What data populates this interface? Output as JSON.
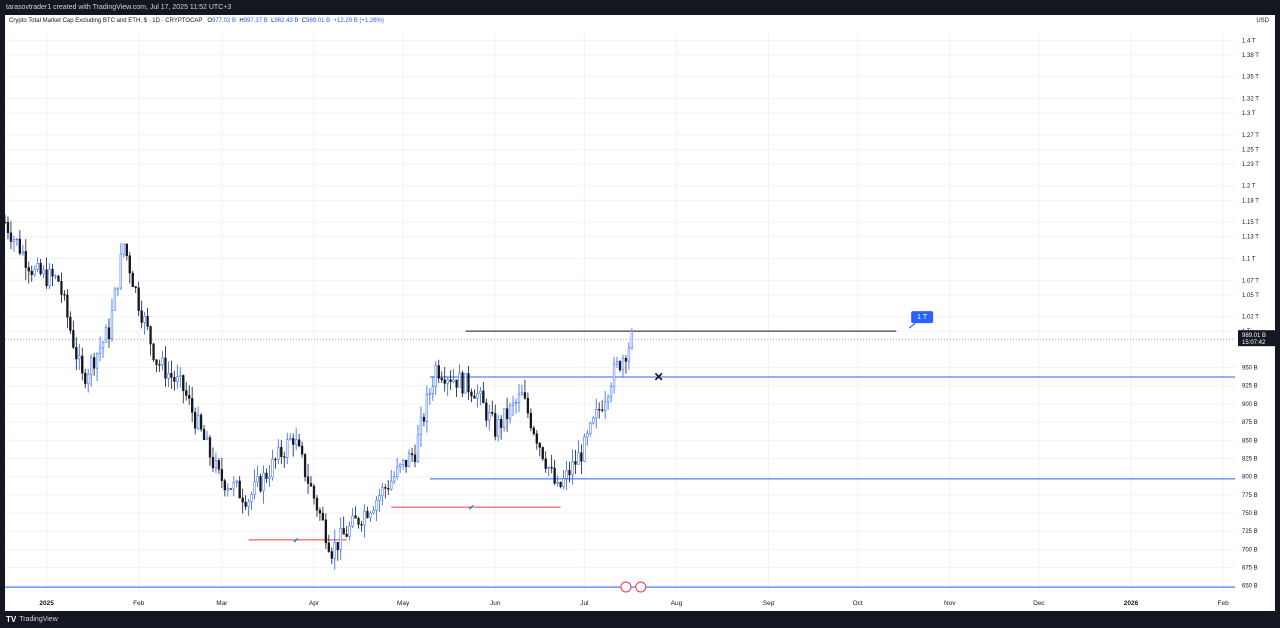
{
  "header": {
    "attribution": "tarasovtrader1 created with TradingView.com, Jul 17, 2025 11:52 UTC+3"
  },
  "footer": {
    "brand": "TradingView"
  },
  "legend": {
    "symbol": "Crypto Total Market Cap Excluding BTC and ETH, $ · 1D · CRYPTOCAP",
    "open_label": "O",
    "open": "977.02 B",
    "high_label": "H",
    "high": "997.37 B",
    "low_label": "L",
    "low": "962.43 B",
    "close_label": "C",
    "close": "989.01 B",
    "change": "+12.29 B (+1.26%)"
  },
  "price_axis": {
    "currency": "USD",
    "ticks": [
      "650 B",
      "675 B",
      "700 B",
      "725 B",
      "750 B",
      "775 B",
      "800 B",
      "825 B",
      "850 B",
      "875 B",
      "900 B",
      "925 B",
      "950 B",
      "1 T",
      "1.02 T",
      "1.05 T",
      "1.07 T",
      "1.1 T",
      "1.13 T",
      "1.15 T",
      "1.18 T",
      "1.2 T",
      "1.23 T",
      "1.25 T",
      "1.27 T",
      "1.3 T",
      "1.32 T",
      "1.35 T",
      "1.38 T",
      "1.4 T"
    ],
    "last_price_label": "989.01 B",
    "countdown_label": "15:07:42"
  },
  "time_axis": {
    "ticks": [
      "2025",
      "Feb",
      "Mar",
      "Apr",
      "May",
      "Jun",
      "Jul",
      "Aug",
      "Sep",
      "Oct",
      "Nov",
      "Dec",
      "2026",
      "Feb"
    ]
  },
  "annotations": {
    "target_label": "1 T",
    "check_mark": "✔",
    "x_mark": "✕"
  },
  "colors": {
    "background": "#ffffff",
    "frame": "#131722",
    "up_candle": "#2962ff",
    "down_candle": "#131722",
    "horizontal_lines": "#2962ff",
    "red_lines": "#f23645",
    "callout_bg": "#2962ff"
  },
  "chart_data": {
    "type": "candlestick",
    "title": "Crypto Total Market Cap Excluding BTC and ETH, $ · 1D · CRYPTOCAP",
    "interval": "1D",
    "y_unit": "USD (billions)",
    "ylim": [
      640,
      1410
    ],
    "x_range": [
      "2024-12-18",
      "2026-02-05"
    ],
    "grid": true,
    "last_close": 989.01,
    "horizontal_levels": [
      {
        "name": "resistance",
        "value": 937,
        "from": "2025-05-10",
        "to": "2026-02-05"
      },
      {
        "name": "support",
        "value": 797,
        "from": "2025-05-10",
        "to": "2026-02-05"
      },
      {
        "name": "base",
        "value": 648,
        "from": "2024-12-18",
        "to": "2026-02-05"
      },
      {
        "name": "target",
        "value": 1000,
        "from": "2025-05-22",
        "to": "2025-10-14"
      }
    ],
    "red_lines": [
      {
        "value": 713,
        "from": "2025-03-10",
        "to": "2025-04-12"
      },
      {
        "value": 758,
        "from": "2025-04-27",
        "to": "2025-06-23"
      }
    ],
    "price_path": [
      {
        "date": "2024-12-18",
        "close": 1150
      },
      {
        "date": "2024-12-28",
        "close": 1080
      },
      {
        "date": "2025-01-05",
        "close": 1070
      },
      {
        "date": "2025-01-13",
        "close": 935
      },
      {
        "date": "2025-01-22",
        "close": 1000
      },
      {
        "date": "2025-01-27",
        "close": 1120
      },
      {
        "date": "2025-02-01",
        "close": 1040
      },
      {
        "date": "2025-02-07",
        "close": 960
      },
      {
        "date": "2025-02-16",
        "close": 920
      },
      {
        "date": "2025-02-28",
        "close": 800
      },
      {
        "date": "2025-03-10",
        "close": 770
      },
      {
        "date": "2025-03-25",
        "close": 855
      },
      {
        "date": "2025-04-07",
        "close": 700
      },
      {
        "date": "2025-04-22",
        "close": 770
      },
      {
        "date": "2025-05-05",
        "close": 835
      },
      {
        "date": "2025-05-12",
        "close": 950
      },
      {
        "date": "2025-05-25",
        "close": 920
      },
      {
        "date": "2025-06-01",
        "close": 865
      },
      {
        "date": "2025-06-10",
        "close": 910
      },
      {
        "date": "2025-06-22",
        "close": 780
      },
      {
        "date": "2025-07-01",
        "close": 840
      },
      {
        "date": "2025-07-10",
        "close": 935
      },
      {
        "date": "2025-07-17",
        "close": 989
      }
    ]
  }
}
